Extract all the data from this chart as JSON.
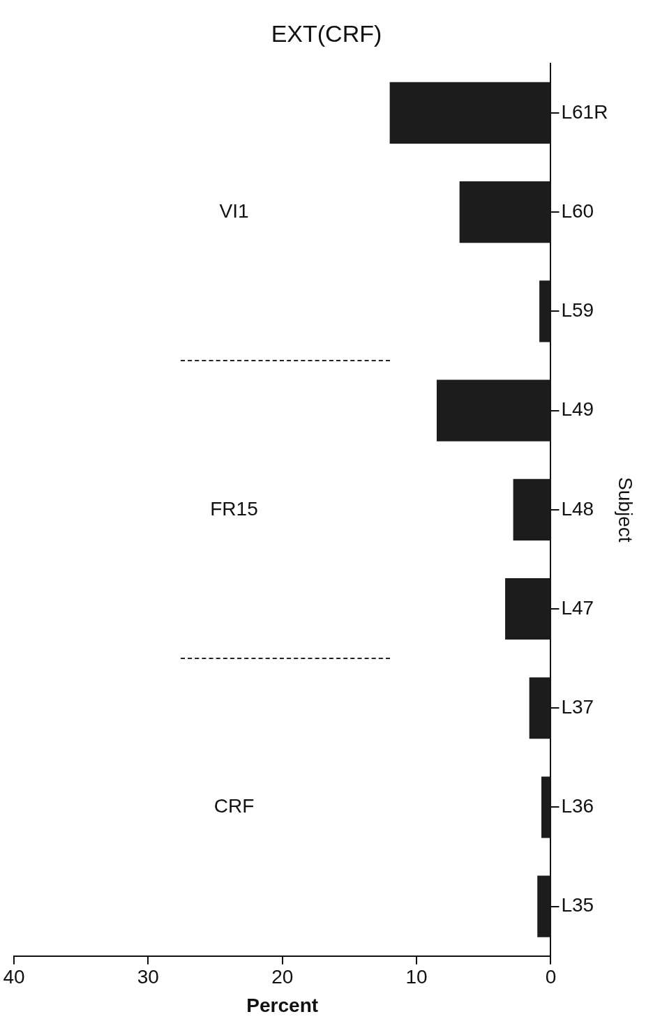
{
  "chart_data": {
    "type": "bar",
    "orientation": "horizontal",
    "title": "EXT(CRF)",
    "xlabel": "Percent",
    "ylabel": "Subject",
    "categories": [
      "L61R",
      "L60",
      "L59",
      "L49",
      "L48",
      "L47",
      "L37",
      "L36",
      "L35"
    ],
    "values": [
      12.0,
      6.8,
      0.85,
      8.5,
      2.8,
      3.4,
      1.6,
      0.7,
      1.0
    ],
    "color": "#1c1c1c",
    "xlim": [
      40,
      0
    ],
    "xticks": [
      40,
      30,
      20,
      10,
      0
    ],
    "grid": false,
    "legend": false,
    "annotations": [
      "CRF",
      "FR15",
      "VI1"
    ]
  }
}
